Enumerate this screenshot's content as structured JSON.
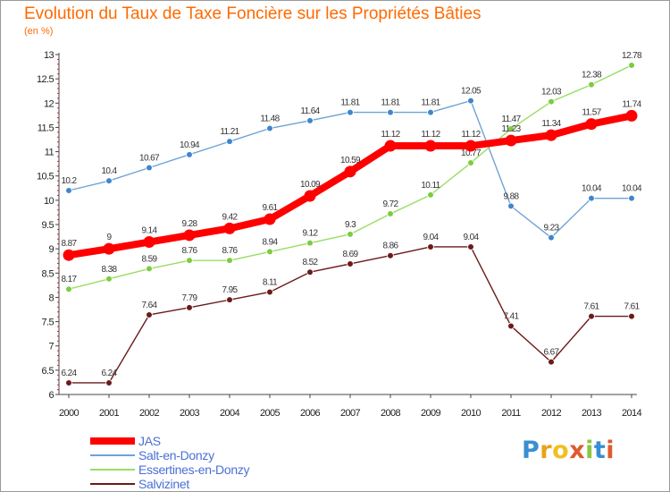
{
  "header": {
    "title": "Evolution du Taux de Taxe Foncière sur les Propriétés Bâties",
    "subtitle": "(en %)"
  },
  "logo": {
    "letters": [
      "P",
      "r",
      "o",
      "x",
      "i",
      "t",
      "i"
    ]
  },
  "chart_data": {
    "type": "line",
    "title": "Evolution du Taux de Taxe Foncière sur les Propriétés Bâties",
    "ylabel": "(en %)",
    "xlabel": "",
    "x": [
      "2000",
      "2001",
      "2002",
      "2003",
      "2004",
      "2005",
      "2006",
      "2007",
      "2008",
      "2009",
      "2010",
      "2011",
      "2012",
      "2013",
      "2014"
    ],
    "ylim": [
      6,
      13
    ],
    "yticks": [
      "6",
      "6.5",
      "7",
      "7.5",
      "8",
      "8.5",
      "9",
      "9.5",
      "10",
      "10.5",
      "11",
      "11.5",
      "12",
      "12.5",
      "13"
    ],
    "grid": false,
    "legend_position": "bottom-left",
    "series": [
      {
        "name": "JAS",
        "color": "#ff0000",
        "values": [
          8.87,
          9,
          9.14,
          9.28,
          9.42,
          9.61,
          10.09,
          10.59,
          11.12,
          11.12,
          11.12,
          11.23,
          11.34,
          11.57,
          11.74
        ],
        "labels": [
          "8.87",
          "9",
          "9.14",
          "9.28",
          "9.42",
          "9.61",
          "10.09",
          "10.59",
          "11.12",
          "11.12",
          "11.12",
          "11.23",
          "11.34",
          "11.57",
          "11.74"
        ]
      },
      {
        "name": "Salt-en-Donzy",
        "color": "#6ea3d6",
        "values": [
          10.2,
          10.4,
          10.67,
          10.94,
          11.21,
          11.48,
          11.64,
          11.81,
          11.81,
          11.81,
          12.05,
          9.88,
          9.23,
          10.04,
          10.04
        ],
        "labels": [
          "10.2",
          "10.4",
          "10.67",
          "10.94",
          "11.21",
          "11.48",
          "11.64",
          "11.81",
          "11.81",
          "11.81",
          "12.05",
          "9.88",
          "9.23",
          "10.04",
          "10.04"
        ]
      },
      {
        "name": "Essertines-en-Donzy",
        "color": "#99dd66",
        "values": [
          8.17,
          8.38,
          8.59,
          8.76,
          8.76,
          8.94,
          9.12,
          9.3,
          9.72,
          10.11,
          10.77,
          11.47,
          12.03,
          12.38,
          12.78
        ],
        "labels": [
          "8.17",
          "8.38",
          "8.59",
          "8.76",
          "8.76",
          "8.94",
          "9.12",
          "9.3",
          "9.72",
          "10.11",
          "10.77",
          "11.47",
          "12.03",
          "12.38",
          "12.78"
        ]
      },
      {
        "name": "Salvizinet",
        "color": "#6b1a1a",
        "values": [
          6.24,
          6.24,
          7.64,
          7.79,
          7.95,
          8.11,
          8.52,
          8.69,
          8.86,
          9.04,
          9.04,
          7.41,
          6.67,
          7.61,
          7.61
        ],
        "labels": [
          "6.24",
          "6.24",
          "7.64",
          "7.79",
          "7.95",
          "8.11",
          "8.52",
          "8.69",
          "8.86",
          "9.04",
          "9.04",
          "7.41",
          "6.67",
          "7.61",
          "7.61"
        ]
      }
    ]
  }
}
